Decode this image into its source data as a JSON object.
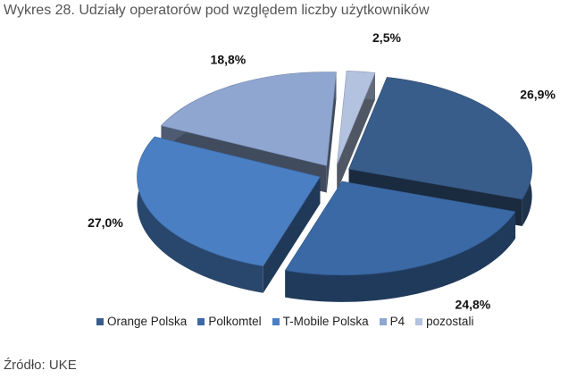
{
  "title": "Wykres 28. Udziały operatorów pod względem liczby użytkowników",
  "source": "Źródło: UKE",
  "chart_data": {
    "type": "pie",
    "title": "Wykres 28. Udziały operatorów pod względem liczby użytkowników",
    "exploded": true,
    "style": "3d",
    "legend_position": "bottom",
    "slices": [
      {
        "name": "Orange Polska",
        "value": 26.9,
        "label": "26,9%",
        "color": "#395d8b"
      },
      {
        "name": "Polkomtel",
        "value": 24.8,
        "label": "24,8%",
        "color": "#3a69a6"
      },
      {
        "name": "T-Mobile Polska",
        "value": 27.0,
        "label": "27,0%",
        "color": "#4a7fc4"
      },
      {
        "name": "P4",
        "value": 18.8,
        "label": "18,8%",
        "color": "#8ea6d0"
      },
      {
        "name": "pozostali",
        "value": 2.5,
        "label": "2,5%",
        "color": "#b2c2df"
      }
    ]
  }
}
